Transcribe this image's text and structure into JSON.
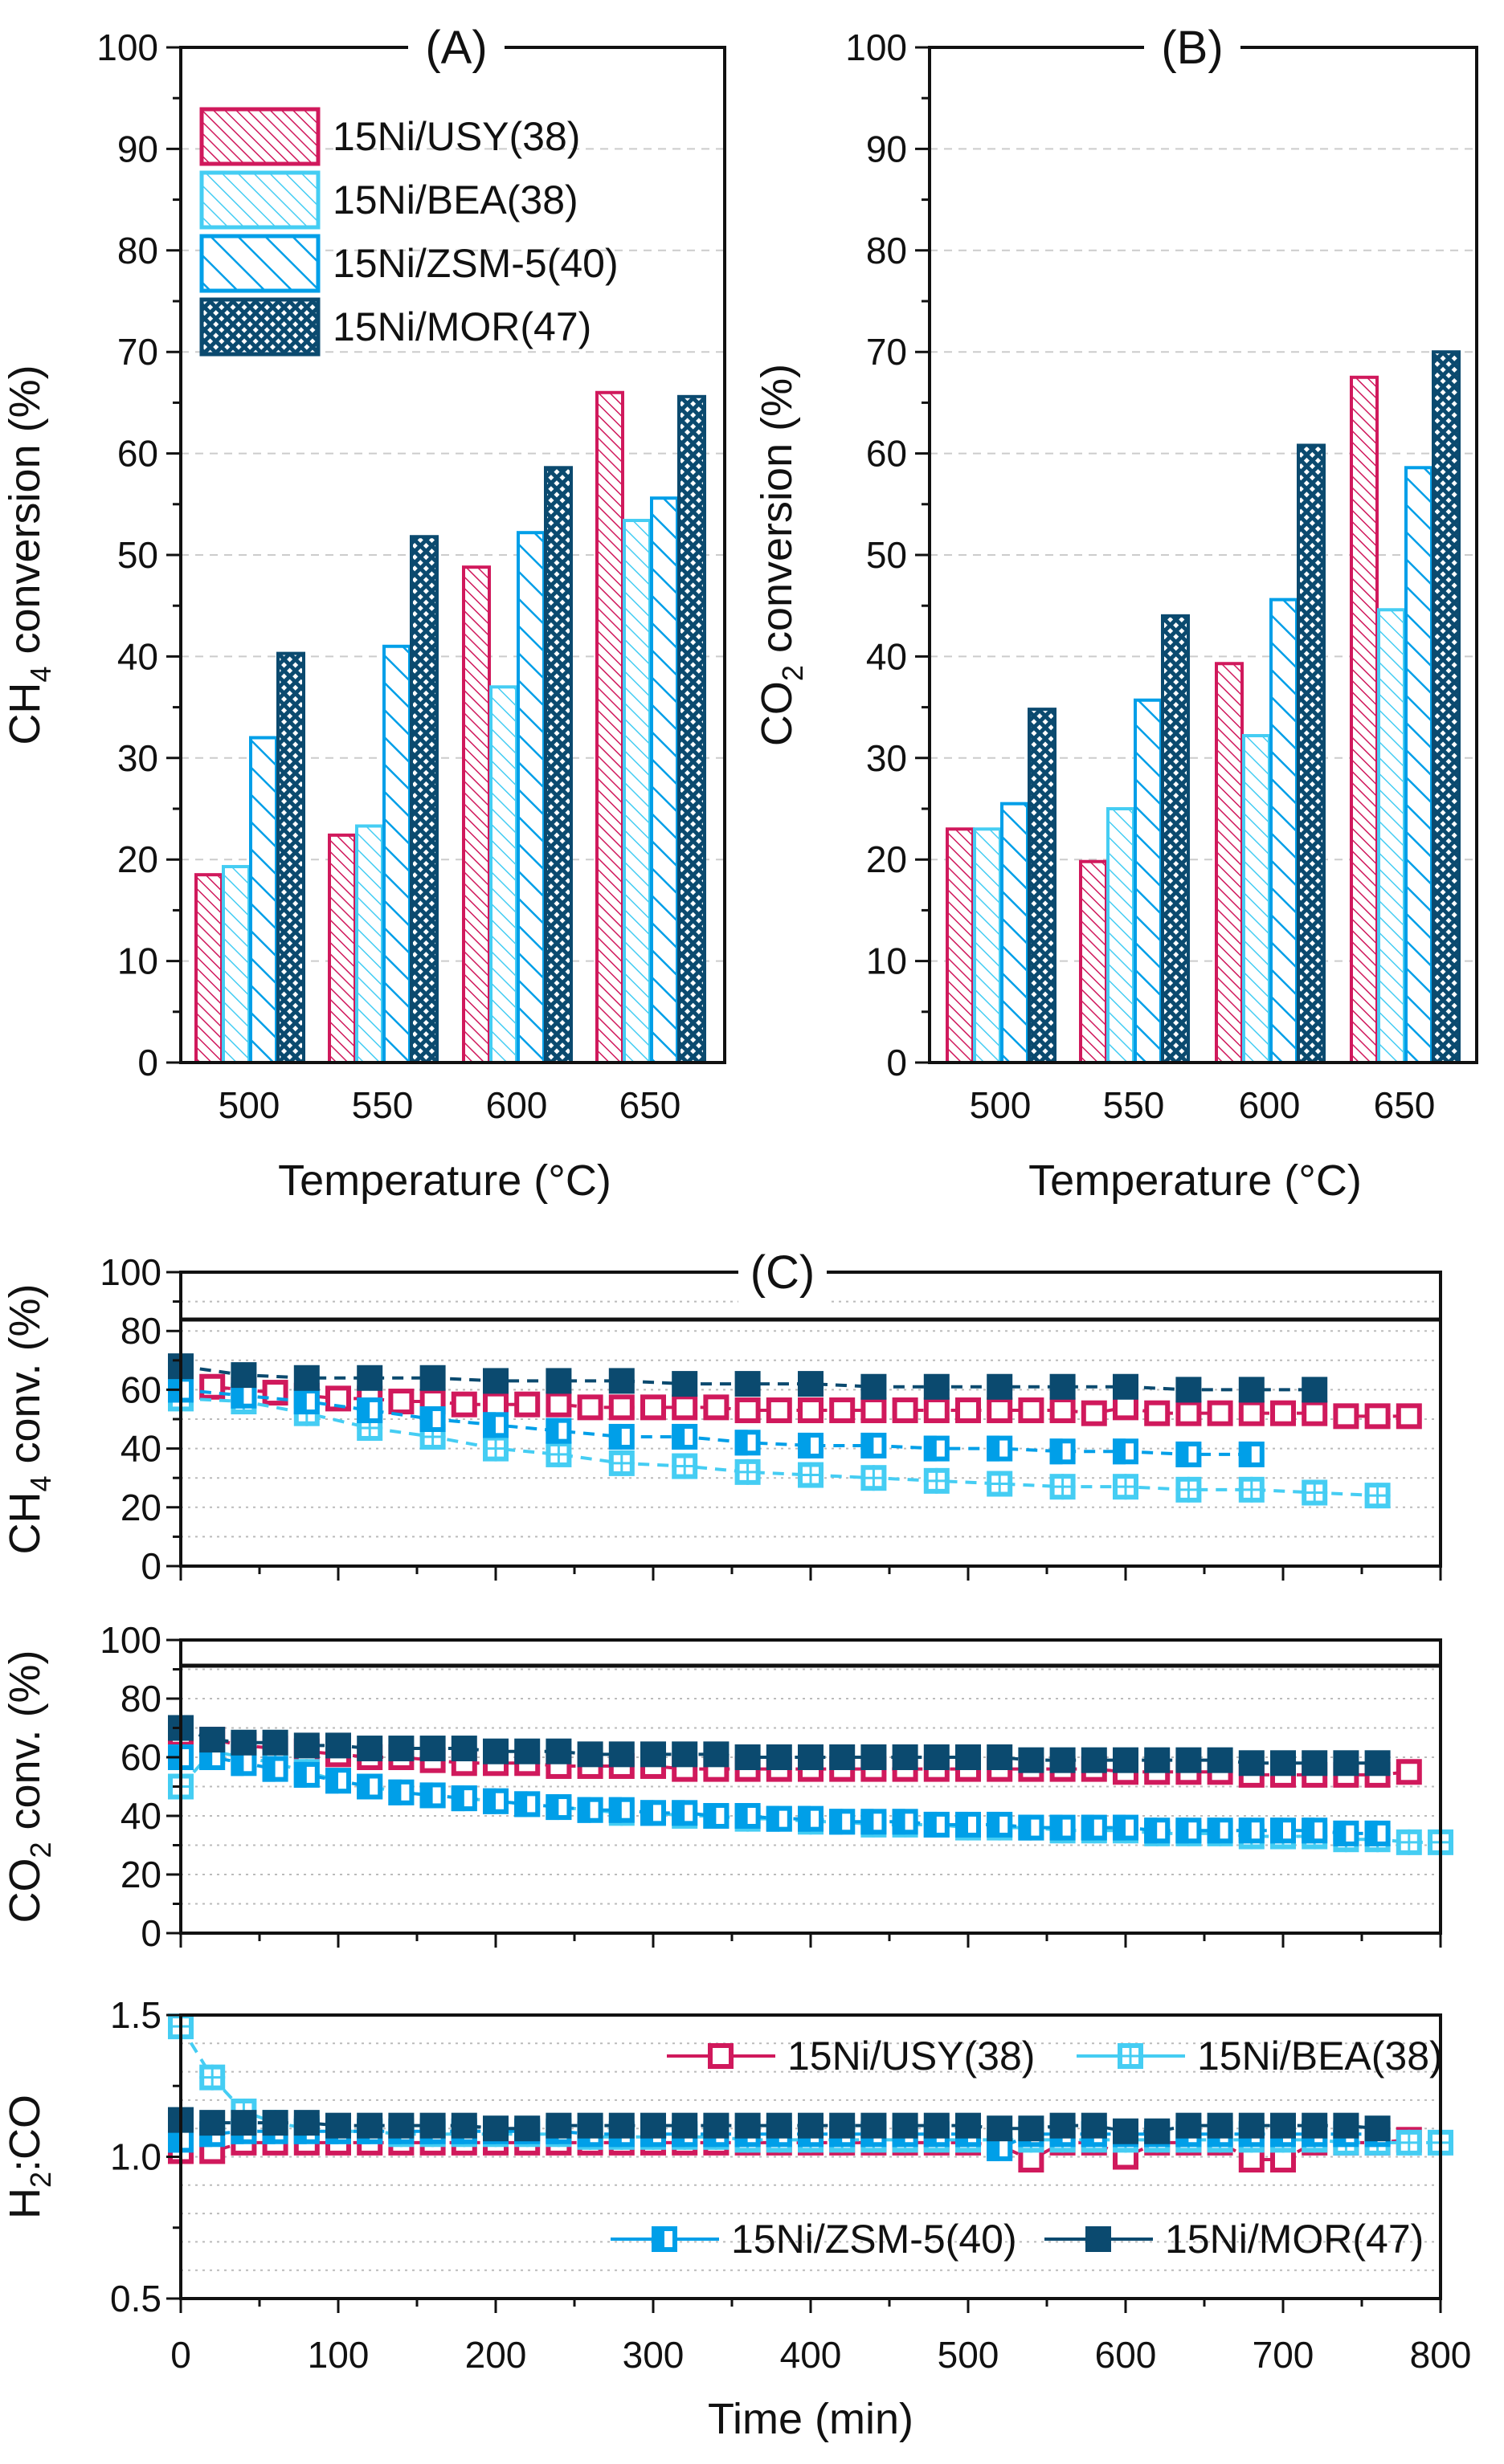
{
  "colors": {
    "usy": "#d0195c",
    "bea": "#45cdf3",
    "zsm": "#009fe8",
    "mor": "#0b4a6f"
  },
  "chart_data": [
    {
      "type": "bar",
      "title": "(A)",
      "categories": [
        "500",
        "550",
        "600",
        "650"
      ],
      "xlabel": "Temperature (°C)",
      "ylabel_parts": [
        "CH",
        "4",
        " conversion (%)"
      ],
      "ylim": [
        0,
        100
      ],
      "yticks": [
        "0",
        "10",
        "20",
        "30",
        "40",
        "50",
        "60",
        "70",
        "80",
        "90",
        "100"
      ],
      "legend": "top-left",
      "series": [
        {
          "name": "15Ni/USY(38)",
          "values": [
            18.5,
            22.4,
            48.8,
            66.0
          ]
        },
        {
          "name": "15Ni/BEA(38)",
          "values": [
            19.3,
            23.3,
            37.0,
            53.4
          ]
        },
        {
          "name": "15Ni/ZSM-5(40)",
          "values": [
            32.0,
            41.0,
            52.2,
            55.6
          ]
        },
        {
          "name": "15Ni/MOR(47)",
          "values": [
            40.3,
            51.8,
            58.6,
            65.6
          ]
        }
      ]
    },
    {
      "type": "bar",
      "title": "(B)",
      "categories": [
        "500",
        "550",
        "600",
        "650"
      ],
      "xlabel": "Temperature (°C)",
      "ylabel_parts": [
        "CO",
        "2",
        " conversion (%)"
      ],
      "ylim": [
        0,
        100
      ],
      "yticks": [
        "0",
        "10",
        "20",
        "30",
        "40",
        "50",
        "60",
        "70",
        "80",
        "90",
        "100"
      ],
      "series": [
        {
          "name": "15Ni/USY(38)",
          "values": [
            23.0,
            19.8,
            39.3,
            67.5
          ]
        },
        {
          "name": "15Ni/BEA(38)",
          "values": [
            23.0,
            25.0,
            32.2,
            44.6
          ]
        },
        {
          "name": "15Ni/ZSM-5(40)",
          "values": [
            25.5,
            35.7,
            45.6,
            58.6
          ]
        },
        {
          "name": "15Ni/MOR(47)",
          "values": [
            34.8,
            44.0,
            60.8,
            70.0
          ]
        }
      ]
    },
    {
      "type": "scatter",
      "title": "(C)",
      "ylabel_parts": [
        "CH",
        "4",
        " conv. (%)"
      ],
      "xlim": [
        0,
        800
      ],
      "ylim": [
        0,
        100
      ],
      "yticks": [
        "0",
        "20",
        "40",
        "60",
        "80",
        "100"
      ],
      "series": [
        {
          "name": "15Ni/USY(38)",
          "t0": 0,
          "dt": 20,
          "values": [
            62,
            61,
            60,
            59,
            58,
            57,
            57,
            56,
            56,
            55,
            55,
            55,
            55,
            54,
            54,
            54,
            54,
            54,
            53,
            53,
            53,
            53,
            53,
            53,
            53,
            53,
            53,
            53,
            53,
            52,
            54,
            52,
            52,
            52,
            52,
            52,
            52,
            51,
            51,
            51
          ]
        },
        {
          "name": "15Ni/BEA(38)",
          "t0": 0,
          "dt": 40,
          "values": [
            57,
            56,
            52,
            47,
            44,
            40,
            38,
            35,
            34,
            32,
            31,
            30,
            29,
            28,
            27,
            27,
            26,
            26,
            25,
            24
          ]
        },
        {
          "name": "15Ni/ZSM-5(40)",
          "t0": 0,
          "dt": 40,
          "values": [
            60,
            58,
            56,
            53,
            50,
            48,
            46,
            44,
            44,
            42,
            41,
            41,
            40,
            40,
            39,
            39,
            38,
            38
          ]
        },
        {
          "name": "15Ni/MOR(47)",
          "t0": 0,
          "dt": 40,
          "values": [
            68,
            65,
            64,
            64,
            64,
            63,
            63,
            63,
            62,
            62,
            62,
            61,
            61,
            61,
            61,
            61,
            60,
            60,
            60
          ]
        }
      ]
    },
    {
      "type": "scatter",
      "ylabel_parts": [
        "CO",
        "2",
        " conv. (%)"
      ],
      "xlim": [
        0,
        800
      ],
      "ylim": [
        0,
        100
      ],
      "yticks": [
        "0",
        "20",
        "40",
        "60",
        "80",
        "100"
      ],
      "series": [
        {
          "name": "15Ni/USY(38)",
          "t0": 0,
          "dt": 20,
          "values": [
            68,
            66,
            64,
            63,
            62,
            61,
            60,
            60,
            59,
            58,
            58,
            58,
            57,
            57,
            57,
            57,
            56,
            56,
            56,
            56,
            56,
            56,
            56,
            56,
            56,
            56,
            56,
            56,
            56,
            56,
            55,
            55,
            55,
            55,
            54,
            54,
            54,
            54,
            54,
            55
          ]
        },
        {
          "name": "15Ni/BEA(38)",
          "t0": 0,
          "dt": 20,
          "values": [
            50,
            62,
            60,
            58,
            55,
            52,
            50,
            48,
            47,
            46,
            45,
            44,
            43,
            42,
            41,
            41,
            40,
            40,
            39,
            39,
            38,
            38,
            37,
            37,
            37,
            36,
            36,
            36,
            35,
            35,
            35,
            34,
            34,
            34,
            33,
            33,
            33,
            32,
            32,
            31,
            31
          ]
        },
        {
          "name": "15Ni/ZSM-5(40)",
          "t0": 0,
          "dt": 20,
          "values": [
            60,
            60,
            58,
            56,
            54,
            52,
            50,
            48,
            47,
            46,
            45,
            44,
            43,
            42,
            42,
            41,
            41,
            40,
            40,
            39,
            39,
            38,
            38,
            38,
            37,
            37,
            37,
            36,
            36,
            36,
            36,
            35,
            35,
            35,
            35,
            35,
            35,
            34,
            34
          ]
        },
        {
          "name": "15Ni/MOR(47)",
          "t0": 0,
          "dt": 20,
          "values": [
            70,
            66,
            65,
            65,
            64,
            64,
            63,
            63,
            63,
            63,
            62,
            62,
            62,
            61,
            61,
            61,
            61,
            61,
            60,
            60,
            60,
            60,
            60,
            60,
            60,
            60,
            60,
            59,
            59,
            59,
            59,
            59,
            59,
            59,
            58,
            58,
            58,
            58,
            58
          ]
        }
      ]
    },
    {
      "type": "scatter",
      "ylabel_parts": [
        "H",
        "2",
        ":CO"
      ],
      "xlabel": "Time (min)",
      "xlim": [
        0,
        800
      ],
      "ylim": [
        0.5,
        1.5
      ],
      "xticks": [
        "0",
        "100",
        "200",
        "300",
        "400",
        "500",
        "600",
        "700",
        "800"
      ],
      "yticks": [
        "0.5",
        "1.0",
        "1.5"
      ],
      "legend": "top-right / bottom-right",
      "series": [
        {
          "name": "15Ni/USY(38)",
          "t0": 0,
          "dt": 20,
          "values": [
            1.02,
            1.02,
            1.05,
            1.05,
            1.05,
            1.05,
            1.05,
            1.05,
            1.05,
            1.05,
            1.05,
            1.05,
            1.05,
            1.05,
            1.05,
            1.05,
            1.05,
            1.05,
            1.05,
            1.05,
            1.05,
            1.05,
            1.05,
            1.05,
            1.05,
            1.05,
            1.04,
            0.99,
            1.05,
            1.05,
            1.0,
            1.05,
            1.05,
            1.05,
            0.99,
            0.99,
            1.05,
            1.05,
            1.05,
            1.06
          ]
        },
        {
          "name": "15Ni/BEA(38)",
          "t0": 0,
          "dt": 20,
          "values": [
            1.46,
            1.28,
            1.16,
            1.12,
            1.1,
            1.09,
            1.09,
            1.08,
            1.08,
            1.08,
            1.08,
            1.08,
            1.08,
            1.07,
            1.07,
            1.07,
            1.07,
            1.07,
            1.06,
            1.06,
            1.06,
            1.06,
            1.06,
            1.06,
            1.06,
            1.06,
            1.06,
            1.06,
            1.06,
            1.06,
            1.06,
            1.06,
            1.06,
            1.06,
            1.06,
            1.06,
            1.06,
            1.05,
            1.05,
            1.05,
            1.05
          ]
        },
        {
          "name": "15Ni/ZSM-5(40)",
          "t0": 0,
          "dt": 20,
          "values": [
            1.06,
            1.08,
            1.09,
            1.09,
            1.09,
            1.09,
            1.09,
            1.09,
            1.09,
            1.09,
            1.09,
            1.09,
            1.09,
            1.08,
            1.08,
            1.08,
            1.08,
            1.08,
            1.08,
            1.08,
            1.08,
            1.08,
            1.08,
            1.08,
            1.08,
            1.08,
            1.03,
            1.08,
            1.08,
            1.08,
            1.08,
            1.08,
            1.08,
            1.08,
            1.08,
            1.08,
            1.08,
            1.08,
            1.08
          ]
        },
        {
          "name": "15Ni/MOR(47)",
          "t0": 0,
          "dt": 20,
          "values": [
            1.13,
            1.12,
            1.12,
            1.12,
            1.12,
            1.11,
            1.11,
            1.11,
            1.11,
            1.11,
            1.1,
            1.1,
            1.11,
            1.11,
            1.11,
            1.11,
            1.11,
            1.11,
            1.11,
            1.11,
            1.11,
            1.11,
            1.11,
            1.11,
            1.11,
            1.11,
            1.1,
            1.1,
            1.11,
            1.11,
            1.09,
            1.09,
            1.11,
            1.11,
            1.11,
            1.11,
            1.11,
            1.11,
            1.1
          ]
        }
      ]
    }
  ]
}
